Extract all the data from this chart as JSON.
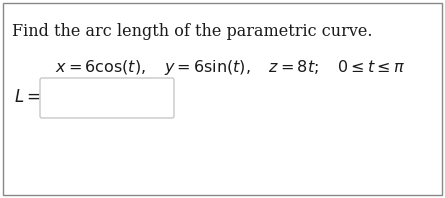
{
  "title": "Find the arc length of the parametric curve.",
  "equation": "$x = 6\\cos(t), \\quad y = 6\\sin(t), \\quad z = 8t; \\quad 0 \\leq t \\leq \\pi$",
  "label": "$L = $",
  "background_color": "#ffffff",
  "text_color": "#1a1a1a",
  "border_color": "#888888",
  "title_fontsize": 11.5,
  "eq_fontsize": 11.5,
  "label_fontsize": 12,
  "box_color": "#c8c8c8"
}
